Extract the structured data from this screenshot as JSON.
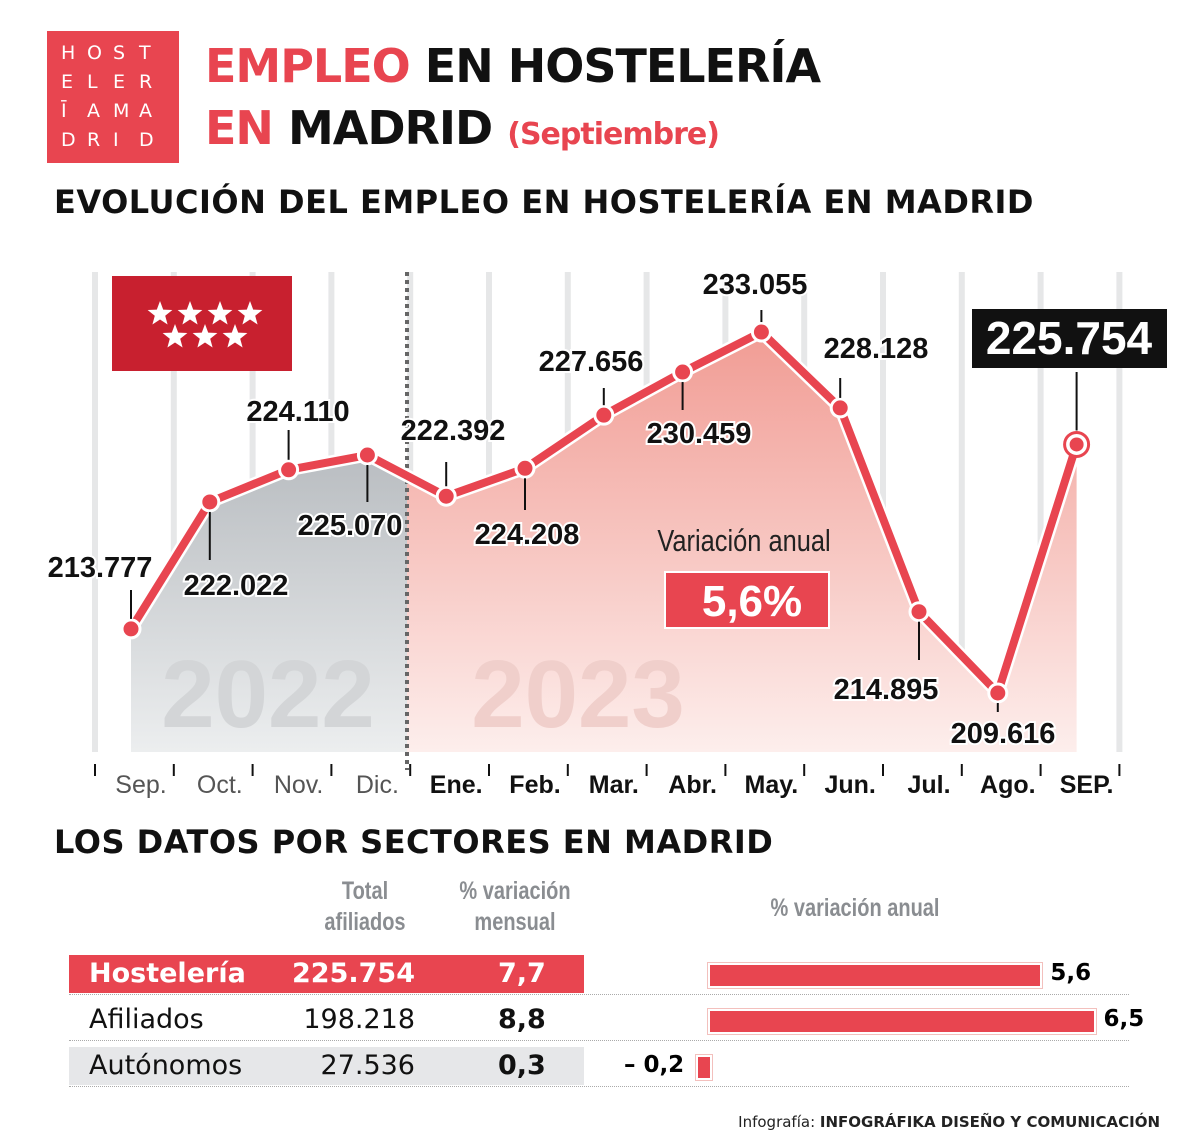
{
  "logo": {
    "rows": [
      "HOST",
      "ELER",
      "ĪAMA",
      "DRID"
    ]
  },
  "title": {
    "line1_red": "EMPLEO",
    "line1_black": "EN HOSTELERÍA",
    "line2_red": "EN",
    "line2_black": "MADRID",
    "line2_sub": "(Septiembre)"
  },
  "colors": {
    "accent": "#e84550",
    "area_2022": "#c9cccf",
    "area_2023": "#f4b3ad",
    "text": "#111111"
  },
  "chart_data": {
    "type": "line",
    "title": "EVOLUCIÓN DEL EMPLEO EN HOSTELERÍA EN MADRID",
    "categories": [
      "Sep.",
      "Oct.",
      "Nov.",
      "Dic.",
      "Ene.",
      "Feb.",
      "Mar.",
      "Abr.",
      "May.",
      "Jun.",
      "Jul.",
      "Ago.",
      "SEP."
    ],
    "values": [
      213777,
      222022,
      224110,
      225070,
      222392,
      224208,
      227656,
      230459,
      233055,
      228128,
      214895,
      209616,
      225754
    ],
    "value_labels": [
      "213.777",
      "222.022",
      "224.110",
      "225.070",
      "222.392",
      "224.208",
      "227.656",
      "230.459",
      "233.055",
      "228.128",
      "214.895",
      "209.616",
      "225.754"
    ],
    "year_labels": [
      "2022",
      "2023"
    ],
    "annotation": {
      "label": "Variación anual",
      "value": "5,6%"
    },
    "flag_icon": "comunidad-de-madrid-flag-icon",
    "grid": true
  },
  "sectors": {
    "title": "LOS DATOS POR SECTORES EN MADRID",
    "headers": {
      "total": [
        "Total",
        "afiliados"
      ],
      "mensual": [
        "% variación",
        "mensual"
      ],
      "anual": "% variación anual"
    },
    "rows": [
      {
        "name": "Hostelería",
        "total": "225.754",
        "mensual": "7,7",
        "anual_label": "5,6",
        "anual": 5.6
      },
      {
        "name": "Afiliados",
        "total": "198.218",
        "mensual": "8,8",
        "anual_label": "6,5",
        "anual": 6.5
      },
      {
        "name": "Autónomos",
        "total": "27.536",
        "mensual": "0,3",
        "anual_label": "– 0,2",
        "anual": -0.2
      }
    ]
  },
  "credit": {
    "prefix": "Infografía:",
    "name": "INFOGRÁFIKA DISEÑO Y COMUNICACIÓN"
  }
}
